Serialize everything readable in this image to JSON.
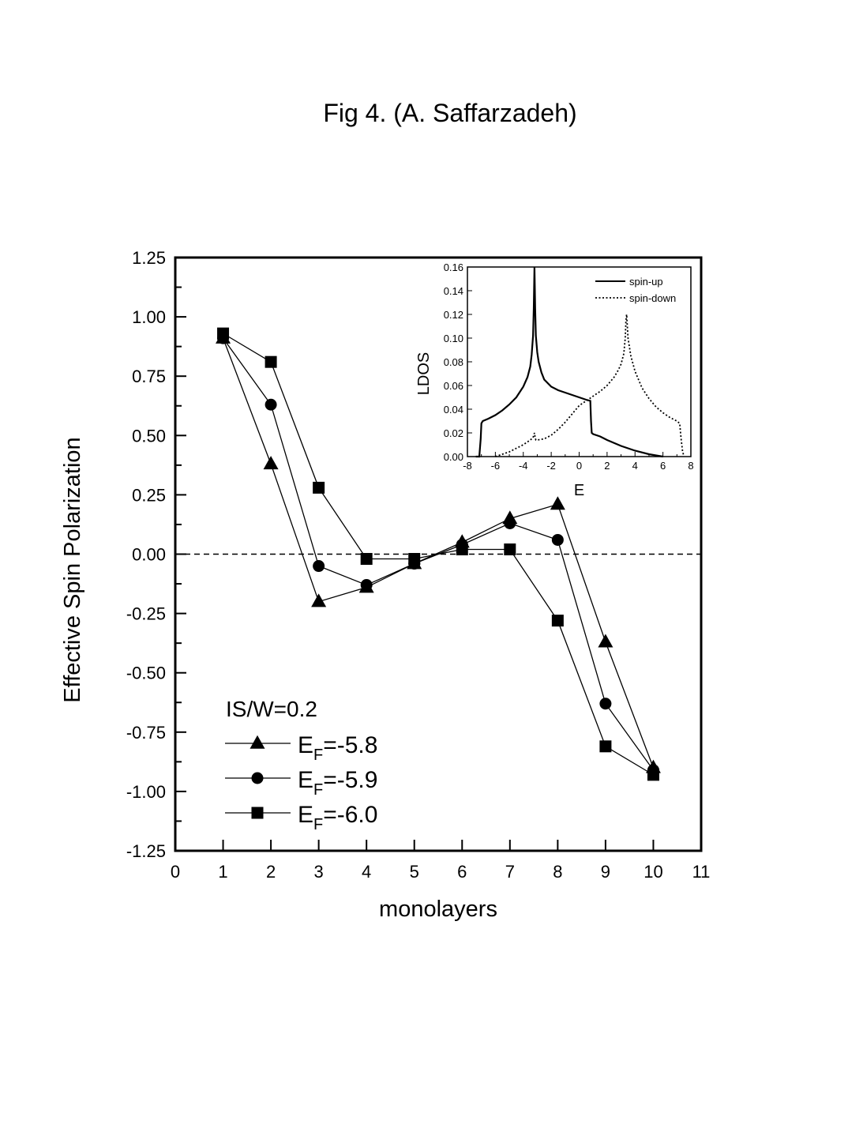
{
  "figure": {
    "caption": "Fig 4. (A. Saffarzadeh)"
  },
  "chart_data": [
    {
      "type": "line",
      "title": "",
      "xlabel": "monolayers",
      "ylabel": "Effective Spin Polarization",
      "xlim": [
        0,
        11
      ],
      "ylim": [
        -1.25,
        1.25
      ],
      "xticks": [
        "0",
        "1",
        "2",
        "3",
        "4",
        "5",
        "6",
        "7",
        "8",
        "9",
        "10",
        "11"
      ],
      "yticks": [
        "1.25",
        "1.00",
        "0.75",
        "0.50",
        "0.25",
        "0.00",
        "-0.25",
        "-0.50",
        "-0.75",
        "-1.00",
        "-1.25"
      ],
      "x": [
        1,
        2,
        3,
        4,
        5,
        6,
        7,
        8,
        9,
        10
      ],
      "reference_line": {
        "y": 0,
        "style": "dashed"
      },
      "legend": {
        "header": "IS/W=0.2",
        "position": "bottom-left",
        "entries": [
          {
            "prefix": "E",
            "sub": "F",
            "suffix": "=-5.8"
          },
          {
            "prefix": "E",
            "sub": "F",
            "suffix": "=-5.9"
          },
          {
            "prefix": "E",
            "sub": "F",
            "suffix": "=-6.0"
          }
        ]
      },
      "series": [
        {
          "name": "EF=-5.8",
          "marker": "triangle",
          "values": [
            0.91,
            0.38,
            -0.2,
            -0.14,
            -0.04,
            0.05,
            0.15,
            0.21,
            -0.37,
            -0.9
          ]
        },
        {
          "name": "EF=-5.9",
          "marker": "circle",
          "values": [
            0.91,
            0.63,
            -0.05,
            -0.13,
            -0.04,
            0.04,
            0.13,
            0.06,
            -0.63,
            -0.91
          ]
        },
        {
          "name": "EF=-6.0",
          "marker": "square",
          "values": [
            0.93,
            0.81,
            0.28,
            -0.02,
            -0.02,
            0.02,
            0.02,
            -0.28,
            -0.81,
            -0.93
          ]
        }
      ]
    },
    {
      "type": "line",
      "title": "",
      "xlabel": "E",
      "ylabel": "LDOS",
      "xlim": [
        -8,
        8
      ],
      "ylim": [
        0,
        0.16
      ],
      "xticks": [
        "-8",
        "-6",
        "-4",
        "-2",
        "0",
        "2",
        "4",
        "6",
        "8"
      ],
      "yticks": [
        "0.16",
        "0.14",
        "0.12",
        "0.10",
        "0.08",
        "0.06",
        "0.04",
        "0.02",
        "0.00"
      ],
      "legend": {
        "position": "top-right",
        "entries": [
          "spin-up",
          "spin-down"
        ]
      },
      "series": [
        {
          "name": "spin-up",
          "style": "solid",
          "x": [
            -7.4,
            -7.15,
            -7.05,
            -7.0,
            -6.9,
            -6.5,
            -6.0,
            -5.5,
            -5.0,
            -4.5,
            -4.0,
            -3.7,
            -3.5,
            -3.4,
            -3.3,
            -3.25,
            -3.2,
            -3.15,
            -3.1,
            -3.0,
            -2.9,
            -2.7,
            -2.5,
            -2.0,
            -1.5,
            -1.0,
            -0.5,
            0.0,
            0.5,
            0.8,
            0.85,
            0.9,
            1.0,
            1.5,
            2.0,
            3.0,
            4.0,
            5.0,
            5.5,
            6.0
          ],
          "y": [
            0.0,
            0.0,
            0.015,
            0.028,
            0.03,
            0.032,
            0.035,
            0.039,
            0.044,
            0.05,
            0.059,
            0.067,
            0.076,
            0.086,
            0.102,
            0.125,
            0.16,
            0.125,
            0.102,
            0.088,
            0.08,
            0.071,
            0.065,
            0.059,
            0.056,
            0.054,
            0.052,
            0.05,
            0.048,
            0.047,
            0.03,
            0.02,
            0.019,
            0.017,
            0.014,
            0.009,
            0.005,
            0.002,
            0.001,
            0.0
          ]
        },
        {
          "name": "spin-down",
          "style": "dotted",
          "x": [
            -6.0,
            -5.5,
            -5.0,
            -4.5,
            -4.0,
            -3.5,
            -3.3,
            -3.2,
            -3.15,
            -3.1,
            -3.0,
            -2.5,
            -2.0,
            -1.5,
            -1.0,
            -0.5,
            0.0,
            0.5,
            1.0,
            1.5,
            2.0,
            2.5,
            2.8,
            3.0,
            3.2,
            3.3,
            3.35,
            3.4,
            3.5,
            3.7,
            4.0,
            4.5,
            5.0,
            5.5,
            6.0,
            6.5,
            7.0,
            7.2,
            7.3,
            7.4,
            7.5
          ],
          "y": [
            0.0,
            0.002,
            0.004,
            0.007,
            0.01,
            0.014,
            0.016,
            0.02,
            0.016,
            0.014,
            0.014,
            0.015,
            0.018,
            0.023,
            0.029,
            0.036,
            0.043,
            0.047,
            0.051,
            0.055,
            0.06,
            0.067,
            0.073,
            0.078,
            0.087,
            0.1,
            0.115,
            0.12,
            0.1,
            0.085,
            0.072,
            0.058,
            0.049,
            0.042,
            0.037,
            0.033,
            0.03,
            0.028,
            0.015,
            0.005,
            0.0
          ]
        }
      ]
    }
  ]
}
